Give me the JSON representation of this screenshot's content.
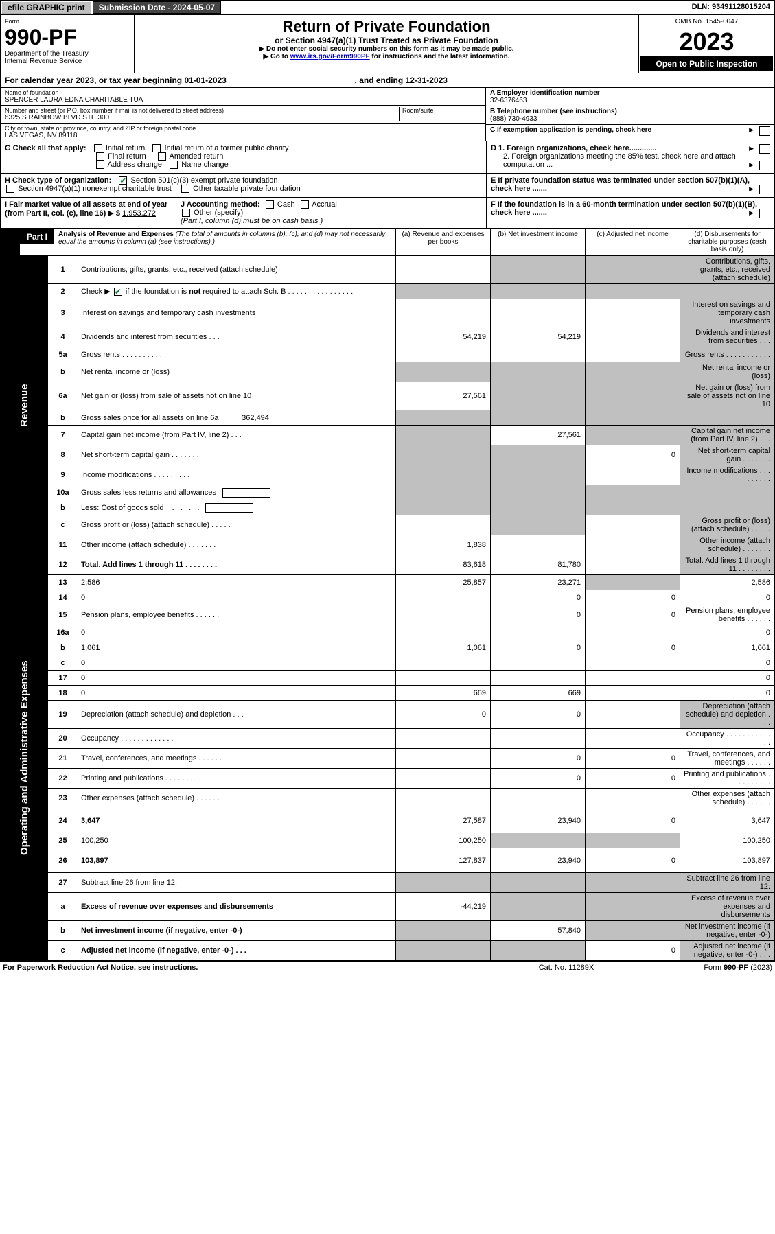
{
  "topbar": {
    "efile": "efile GRAPHIC print",
    "sub_date_label": "Submission Date - 2024-05-07",
    "dln": "DLN: 93491128015204"
  },
  "header": {
    "form_word": "Form",
    "form_number": "990-PF",
    "dept": "Department of the Treasury",
    "irs": "Internal Revenue Service",
    "title": "Return of Private Foundation",
    "subtitle": "or Section 4947(a)(1) Trust Treated as Private Foundation",
    "instr1": "▶ Do not enter social security numbers on this form as it may be made public.",
    "instr2_pre": "▶ Go to ",
    "instr2_link": "www.irs.gov/Form990PF",
    "instr2_post": " for instructions and the latest information.",
    "omb": "OMB No. 1545-0047",
    "year": "2023",
    "inspect": "Open to Public Inspection"
  },
  "calendar": {
    "pre": "For calendar year 2023, or tax year beginning ",
    "begin": "01-01-2023",
    "mid": " , and ending ",
    "end": "12-31-2023"
  },
  "entity": {
    "name_label": "Name of foundation",
    "name": "SPENCER LAURA EDNA CHARITABLE TUA",
    "addr_label": "Number and street (or P.O. box number if mail is not delivered to street address)",
    "room_label": "Room/suite",
    "street": "6325 S RAINBOW BLVD STE 300",
    "city_label": "City or town, state or province, country, and ZIP or foreign postal code",
    "city": "LAS VEGAS, NV  89118",
    "a_label": "A Employer identification number",
    "a_val": "32-6376463",
    "b_label": "B Telephone number (see instructions)",
    "b_val": "(888) 730-4933",
    "c_label": "C If exemption application is pending, check here"
  },
  "checks": {
    "g_label": "G Check all that apply:",
    "g_opts": [
      "Initial return",
      "Initial return of a former public charity",
      "Final return",
      "Amended return",
      "Address change",
      "Name change"
    ],
    "h_label": "H Check type of organization:",
    "h1": "Section 501(c)(3) exempt private foundation",
    "h2": "Section 4947(a)(1) nonexempt charitable trust",
    "h3": "Other taxable private foundation",
    "i_label": "I Fair market value of all assets at end of year (from Part II, col. (c), line 16)",
    "i_val": "1,953,272",
    "j_label": "J Accounting method:",
    "j_cash": "Cash",
    "j_accr": "Accrual",
    "j_other": "Other (specify)",
    "j_note": "(Part I, column (d) must be on cash basis.)",
    "d1": "D 1. Foreign organizations, check here.............",
    "d2": "2. Foreign organizations meeting the 85% test, check here and attach computation ...",
    "e": "E  If private foundation status was terminated under section 507(b)(1)(A), check here .......",
    "f": "F  If the foundation is in a 60-month termination under section 507(b)(1)(B), check here ......."
  },
  "part1": {
    "tag": "Part I",
    "title": "Analysis of Revenue and Expenses",
    "title_note": " (The total of amounts in columns (b), (c), and (d) may not necessarily equal the amounts in column (a) (see instructions).)",
    "cols": {
      "a": "(a)   Revenue and expenses per books",
      "b": "(b)   Net investment income",
      "c": "(c)   Adjusted net income",
      "d": "(d)   Disbursements for charitable purposes (cash basis only)"
    }
  },
  "side_labels": {
    "rev": "Revenue",
    "exp": "Operating and Administrative Expenses"
  },
  "rows": [
    {
      "n": "1",
      "d": "Contributions, gifts, grants, etc., received (attach schedule)",
      "a": "",
      "b_sh": true,
      "c_sh": true,
      "d_sh": true
    },
    {
      "n": "2",
      "d_html": "Check ▶ <span class='cb checked'></span> if the foundation is <b>not</b> required to attach Sch. B   .  .  .  .  .  .  .  .  .  .  .  .  .  .  .  .",
      "a_sh": true,
      "b_sh": true,
      "c_sh": true,
      "d_sh": true
    },
    {
      "n": "3",
      "d": "Interest on savings and temporary cash investments",
      "d_sh": true
    },
    {
      "n": "4",
      "d": "Dividends and interest from securities   .   .   .",
      "a": "54,219",
      "b": "54,219",
      "d_sh": true
    },
    {
      "n": "5a",
      "d": "Gross rents   .   .   .   .   .   .   .   .   .   .   .",
      "d_sh": true
    },
    {
      "n": "b",
      "d": "Net rental income or (loss)  ",
      "a_sh": true,
      "b_sh": true,
      "c_sh": true,
      "d_sh": true,
      "underline_after": true
    },
    {
      "n": "6a",
      "d": "Net gain or (loss) from sale of assets not on line 10",
      "a": "27,561",
      "b_sh": true,
      "c_sh": true,
      "d_sh": true
    },
    {
      "n": "b",
      "d_html": "Gross sales price for all assets on line 6a <span style='text-decoration:underline;'>&nbsp;&nbsp;&nbsp;&nbsp;&nbsp;&nbsp;&nbsp;&nbsp;&nbsp;&nbsp;362,494</span>",
      "a_sh": true,
      "b_sh": true,
      "c_sh": true,
      "d_sh": true
    },
    {
      "n": "7",
      "d": "Capital gain net income (from Part IV, line 2)   .   .   .",
      "a_sh": true,
      "b": "27,561",
      "c_sh": true,
      "d_sh": true
    },
    {
      "n": "8",
      "d": "Net short-term capital gain   .   .   .   .   .   .   .",
      "a_sh": true,
      "b_sh": true,
      "c": "0",
      "d_sh": true
    },
    {
      "n": "9",
      "d": "Income modifications  .   .   .   .   .   .   .   .   .",
      "a_sh": true,
      "b_sh": true,
      "d_sh": true
    },
    {
      "n": "10a",
      "d_html": "Gross sales less returns and allowances <span style='display:inline-block;border:1px solid #000;width:70px;height:14px;vertical-align:middle;margin-left:6px;'></span>",
      "a_sh": true,
      "b_sh": true,
      "c_sh": true,
      "d_sh": true
    },
    {
      "n": "b",
      "d_html": "Less: Cost of goods sold &nbsp;&nbsp; . &nbsp; . &nbsp; . &nbsp; . <span style='display:inline-block;border:1px solid #000;width:70px;height:14px;vertical-align:middle;margin-left:6px;'></span>",
      "a_sh": true,
      "b_sh": true,
      "c_sh": true,
      "d_sh": true
    },
    {
      "n": "c",
      "d": "Gross profit or (loss) (attach schedule)   .   .   .   .   .",
      "a": "",
      "b_sh": true,
      "d_sh": true
    },
    {
      "n": "11",
      "d": "Other income (attach schedule)   .   .   .   .   .   .   .",
      "a": "1,838",
      "d_sh": true
    },
    {
      "n": "12",
      "d": "Total. Add lines 1 through 11   .   .   .   .   .   .   .   .",
      "bold": true,
      "a": "83,618",
      "b": "81,780",
      "d_sh": true
    },
    {
      "n": "13",
      "d": "2,586",
      "a": "25,857",
      "b": "23,271",
      "c_sh": true
    },
    {
      "n": "14",
      "d": "0",
      "b": "0",
      "c": "0"
    },
    {
      "n": "15",
      "d": "Pension plans, employee benefits  .   .   .   .   .   .",
      "b": "0",
      "c": "0"
    },
    {
      "n": "16a",
      "d": "0"
    },
    {
      "n": "b",
      "d": "1,061",
      "a": "1,061",
      "b": "0",
      "c": "0"
    },
    {
      "n": "c",
      "d": "0"
    },
    {
      "n": "17",
      "d": "0"
    },
    {
      "n": "18",
      "d": "0",
      "a": "669",
      "b": "669"
    },
    {
      "n": "19",
      "d": "Depreciation (attach schedule) and depletion   .   .   .",
      "a": "0",
      "b": "0",
      "d_sh": true
    },
    {
      "n": "20",
      "d": "Occupancy  .   .   .   .   .   .   .   .   .   .   .   .   ."
    },
    {
      "n": "21",
      "d": "Travel, conferences, and meetings  .   .   .   .   .   .",
      "b": "0",
      "c": "0"
    },
    {
      "n": "22",
      "d": "Printing and publications  .   .   .   .   .   .   .   .   .",
      "b": "0",
      "c": "0"
    },
    {
      "n": "23",
      "d": "Other expenses (attach schedule)  .   .   .   .   .   ."
    },
    {
      "n": "24",
      "d": "3,647",
      "bold": true,
      "a": "27,587",
      "b": "23,940",
      "c": "0",
      "tall": true
    },
    {
      "n": "25",
      "d": "100,250",
      "a": "100,250",
      "b_sh": true,
      "c_sh": true
    },
    {
      "n": "26",
      "d": "103,897",
      "bold": true,
      "a": "127,837",
      "b": "23,940",
      "c": "0",
      "tall": true
    },
    {
      "n": "27",
      "d": "Subtract line 26 from line 12:",
      "a_sh": true,
      "b_sh": true,
      "c_sh": true,
      "d_sh": true
    },
    {
      "n": "a",
      "d": "Excess of revenue over expenses and disbursements",
      "bold": true,
      "a": "-44,219",
      "b_sh": true,
      "c_sh": true,
      "d_sh": true,
      "tall": true
    },
    {
      "n": "b",
      "d": "Net investment income (if negative, enter -0-)",
      "bold": true,
      "a_sh": true,
      "b": "57,840",
      "c_sh": true,
      "d_sh": true
    },
    {
      "n": "c",
      "d": "Adjusted net income (if negative, enter -0-)   .   .   .",
      "bold": true,
      "a_sh": true,
      "b_sh": true,
      "c": "0",
      "d_sh": true
    }
  ],
  "footer": {
    "left": "For Paperwork Reduction Act Notice, see instructions.",
    "mid": "Cat. No. 11289X",
    "right": "Form 990-PF (2023)"
  }
}
